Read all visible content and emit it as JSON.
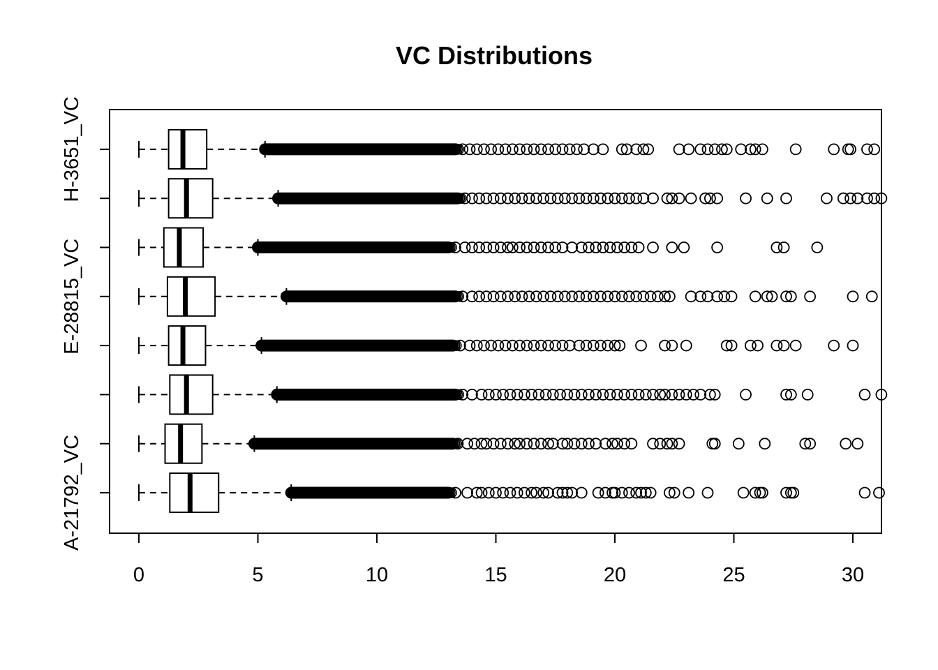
{
  "chart_data": {
    "type": "boxplot",
    "orientation": "horizontal",
    "title": "VC Distributions",
    "xlabel": "",
    "ylabel": "",
    "xlim": [
      -1.2,
      31.2
    ],
    "x_ticks": [
      0,
      5,
      10,
      15,
      20,
      25,
      30
    ],
    "grid": false,
    "legend": "none",
    "color": "#000000",
    "categories": [
      "A-21792_VC",
      "",
      "",
      "",
      "E-28815_VC",
      "",
      "",
      "H-3651_VC"
    ],
    "boxes": [
      {
        "label": "A-21792_VC",
        "min": 0.0,
        "q1": 1.3,
        "median": 2.15,
        "q3": 3.35,
        "whisker_high": 6.4,
        "dense_to": 13.0,
        "outliers": [
          13.3,
          13.8,
          14.2,
          14.4,
          14.7,
          15.0,
          15.3,
          15.6,
          15.9,
          16.2,
          16.5,
          16.7,
          17.0,
          17.2,
          17.6,
          17.8,
          18.0,
          18.2,
          18.6,
          19.3,
          19.6,
          19.9,
          20.0,
          20.3,
          20.6,
          20.9,
          21.1,
          21.3,
          21.5,
          22.3,
          22.5,
          23.1,
          23.9,
          25.4,
          25.9,
          26.1,
          26.2,
          27.2,
          27.4,
          27.5,
          30.5,
          31.1
        ]
      },
      {
        "label": "",
        "min": 0.0,
        "q1": 1.1,
        "median": 1.75,
        "q3": 2.65,
        "whisker_high": 4.85,
        "dense_to": 13.2,
        "outliers": [
          13.4,
          13.8,
          14.1,
          14.4,
          14.6,
          14.9,
          15.2,
          15.5,
          15.8,
          16.0,
          16.3,
          16.6,
          16.9,
          17.2,
          17.4,
          17.8,
          18.0,
          18.3,
          18.6,
          18.9,
          19.2,
          19.6,
          19.9,
          20.1,
          20.4,
          20.7,
          21.6,
          21.9,
          22.2,
          22.4,
          22.7,
          24.1,
          24.2,
          25.2,
          26.3,
          28.0,
          28.2,
          29.7,
          30.2
        ]
      },
      {
        "label": "",
        "min": 0.0,
        "q1": 1.3,
        "median": 2.0,
        "q3": 3.1,
        "whisker_high": 5.8,
        "dense_to": 13.3,
        "outliers": [
          13.6,
          14.0,
          14.4,
          14.7,
          15.0,
          15.3,
          15.6,
          15.9,
          16.2,
          16.5,
          16.8,
          17.1,
          17.4,
          17.7,
          18.0,
          18.3,
          18.6,
          18.9,
          19.2,
          19.5,
          19.8,
          20.1,
          20.4,
          20.7,
          21.0,
          21.3,
          21.6,
          21.9,
          22.1,
          22.4,
          22.7,
          23.0,
          23.3,
          23.6,
          24.0,
          24.2,
          25.5,
          27.2,
          27.4,
          28.1,
          30.5,
          31.2
        ]
      },
      {
        "label": "E-28815_VC",
        "min": 0.0,
        "q1": 1.25,
        "median": 1.85,
        "q3": 2.8,
        "whisker_high": 5.15,
        "dense_to": 13.2,
        "outliers": [
          13.5,
          13.9,
          14.2,
          14.5,
          14.8,
          15.1,
          15.4,
          15.7,
          16.0,
          16.3,
          16.6,
          16.9,
          17.2,
          17.5,
          17.8,
          18.1,
          18.5,
          18.8,
          19.1,
          19.4,
          19.7,
          20.0,
          20.2,
          21.1,
          22.1,
          22.4,
          23.0,
          24.7,
          24.9,
          25.7,
          26.0,
          26.8,
          27.1,
          27.6,
          29.2,
          30.0
        ]
      },
      {
        "label": "",
        "min": 0.0,
        "q1": 1.2,
        "median": 1.95,
        "q3": 3.2,
        "whisker_high": 6.2,
        "dense_to": 13.3,
        "outliers": [
          13.6,
          14.0,
          14.3,
          14.6,
          14.9,
          15.2,
          15.5,
          15.8,
          16.1,
          16.4,
          16.7,
          17.0,
          17.3,
          17.6,
          17.9,
          18.2,
          18.5,
          18.8,
          19.1,
          19.4,
          19.7,
          20.0,
          20.3,
          20.6,
          20.9,
          21.2,
          21.5,
          21.8,
          22.1,
          22.3,
          23.2,
          23.6,
          23.9,
          24.3,
          24.6,
          24.9,
          25.9,
          26.4,
          26.6,
          27.2,
          27.4,
          28.2,
          30.0,
          30.8
        ]
      },
      {
        "label": "",
        "min": 0.0,
        "q1": 1.05,
        "median": 1.7,
        "q3": 2.7,
        "whisker_high": 5.0,
        "dense_to": 13.0,
        "outliers": [
          13.3,
          13.7,
          14.0,
          14.3,
          14.6,
          14.9,
          15.2,
          15.5,
          15.7,
          16.0,
          16.3,
          16.6,
          16.9,
          17.2,
          17.5,
          17.8,
          18.2,
          18.6,
          18.9,
          19.2,
          19.5,
          19.8,
          20.1,
          20.4,
          20.7,
          21.0,
          21.6,
          22.4,
          22.9,
          24.3,
          26.8,
          27.1,
          28.5
        ]
      },
      {
        "label": "",
        "min": 0.0,
        "q1": 1.25,
        "median": 2.0,
        "q3": 3.1,
        "whisker_high": 5.85,
        "dense_to": 13.4,
        "outliers": [
          13.7,
          14.0,
          14.3,
          14.6,
          14.9,
          15.2,
          15.5,
          15.8,
          16.1,
          16.4,
          16.7,
          17.0,
          17.3,
          17.6,
          17.9,
          18.2,
          18.5,
          18.8,
          19.1,
          19.4,
          19.7,
          20.0,
          20.3,
          20.6,
          20.9,
          21.2,
          21.6,
          22.2,
          22.4,
          22.7,
          23.2,
          23.8,
          24.0,
          24.3,
          25.5,
          26.4,
          27.2,
          28.9,
          29.6,
          29.9,
          30.2,
          30.6,
          30.9,
          31.2
        ]
      },
      {
        "label": "H-3651_VC",
        "min": 0.0,
        "q1": 1.25,
        "median": 1.85,
        "q3": 2.85,
        "whisker_high": 5.3,
        "dense_to": 13.3,
        "outliers": [
          13.6,
          13.9,
          14.2,
          14.5,
          14.8,
          15.1,
          15.4,
          15.7,
          16.0,
          16.3,
          16.6,
          16.9,
          17.2,
          17.5,
          17.8,
          18.1,
          18.4,
          18.7,
          19.1,
          19.5,
          20.3,
          20.5,
          20.9,
          21.2,
          21.4,
          22.7,
          23.1,
          23.6,
          23.9,
          24.2,
          24.5,
          24.7,
          25.3,
          25.7,
          25.9,
          26.2,
          27.6,
          29.2,
          29.8,
          29.9,
          30.6,
          30.9
        ]
      }
    ]
  }
}
